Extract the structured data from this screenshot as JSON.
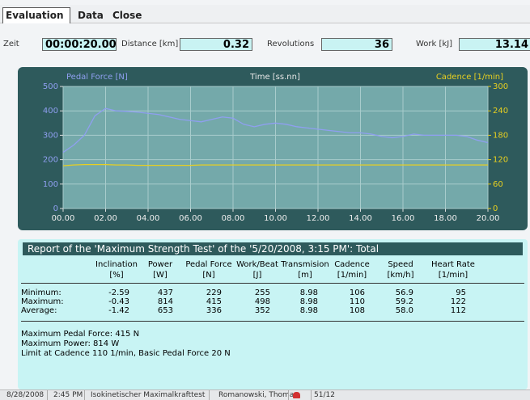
{
  "menu": [
    "Evaluation",
    "Data",
    "Close"
  ],
  "fields": [
    {
      "label": "Zeit",
      "value": "00:00:20.00"
    },
    {
      "label": "Distance [km]",
      "value": "0.32"
    },
    {
      "label": "Revolutions",
      "value": "36"
    },
    {
      "label": "Work [kJ]",
      "value": "13.14"
    }
  ],
  "chart_data": {
    "type": "line",
    "xlabel": "Time [ss.nn]",
    "ylabel": "Pedal Force [N]",
    "y2label": "Cadence [1/min]",
    "x": [
      0,
      0.5,
      1,
      1.5,
      2,
      2.5,
      3,
      3.5,
      4,
      4.5,
      5,
      5.5,
      6,
      6.5,
      7,
      7.5,
      8,
      8.5,
      9,
      9.5,
      10,
      10.5,
      11,
      11.5,
      12,
      12.5,
      13,
      13.5,
      14,
      14.5,
      15,
      15.5,
      16,
      16.5,
      17,
      17.5,
      18,
      18.5,
      19,
      19.5,
      20
    ],
    "series": [
      {
        "name": "Pedal Force [N]",
        "color": "#8f9ff0",
        "values": [
          230,
          260,
          300,
          380,
          410,
          400,
          398,
          395,
          390,
          385,
          375,
          365,
          360,
          355,
          365,
          375,
          370,
          345,
          335,
          345,
          350,
          345,
          335,
          330,
          325,
          320,
          315,
          310,
          310,
          305,
          295,
          290,
          295,
          305,
          300,
          300,
          300,
          300,
          295,
          280,
          270
        ]
      },
      {
        "name": "Cadence [1/min]",
        "color": "#e8d020",
        "axis": "y2",
        "values": [
          105,
          107,
          108,
          108,
          108,
          107,
          107,
          106,
          106,
          106,
          106,
          106,
          106,
          107,
          107,
          107,
          107,
          107,
          107,
          107,
          107,
          107,
          107,
          107,
          107,
          107,
          107,
          107,
          107,
          107,
          107,
          107,
          107,
          107,
          107,
          107,
          107,
          107,
          107,
          107,
          107
        ]
      }
    ],
    "xlim": [
      0,
      20
    ],
    "xticks": [
      {
        "value": 0,
        "label": "00.00"
      },
      {
        "value": 2,
        "label": "02.00"
      },
      {
        "value": 4,
        "label": "04.00"
      },
      {
        "value": 6,
        "label": "06.00"
      },
      {
        "value": 8,
        "label": "08.00"
      },
      {
        "value": 10,
        "label": "10.00"
      },
      {
        "value": 12,
        "label": "12.00"
      },
      {
        "value": 14,
        "label": "14.00"
      },
      {
        "value": 16,
        "label": "16.00"
      },
      {
        "value": 18,
        "label": "18.00"
      },
      {
        "value": 20,
        "label": "20.00"
      }
    ],
    "ylim": [
      0,
      500
    ],
    "yticks": [
      0,
      100,
      200,
      300,
      400,
      500
    ],
    "y2lim": [
      0,
      300
    ],
    "y2ticks": [
      0,
      60,
      120,
      180,
      240,
      300
    ],
    "grid": true
  },
  "report": {
    "title": "Report of the 'Maximum Strength Test' of the '5/20/2008, 3:15 PM': Total",
    "columns": [
      {
        "name": "Inclination",
        "unit": "[%]"
      },
      {
        "name": "Power",
        "unit": "[W]"
      },
      {
        "name": "Pedal Force",
        "unit": "[N]"
      },
      {
        "name": "Work/Beat",
        "unit": "[J]"
      },
      {
        "name": "Transmision",
        "unit": "[m]"
      },
      {
        "name": "Cadence",
        "unit": "[1/min]"
      },
      {
        "name": "Speed",
        "unit": "[km/h]"
      },
      {
        "name": "Heart Rate",
        "unit": "[1/min]"
      }
    ],
    "rows": [
      {
        "label": "Minimum:",
        "values": [
          "-2.59",
          "437",
          "229",
          "255",
          "8.98",
          "106",
          "56.9",
          "95"
        ]
      },
      {
        "label": "Maximum:",
        "values": [
          "-0.43",
          "814",
          "415",
          "498",
          "8.98",
          "110",
          "59.2",
          "122"
        ]
      },
      {
        "label": "Average:",
        "values": [
          "-1.42",
          "653",
          "336",
          "352",
          "8.98",
          "108",
          "58.0",
          "112"
        ]
      }
    ],
    "notes": [
      "Maximum Pedal Force: 415 N",
      "Maximum Power: 814 W",
      "Limit at Cadence 110 1/min, Basic Pedal Force 20 N"
    ]
  },
  "status": [
    "8/28/2008",
    "2:45 PM",
    "Isokinetischer Maximalkrafttest",
    "Romanowski, Thomas",
    "51/12"
  ]
}
